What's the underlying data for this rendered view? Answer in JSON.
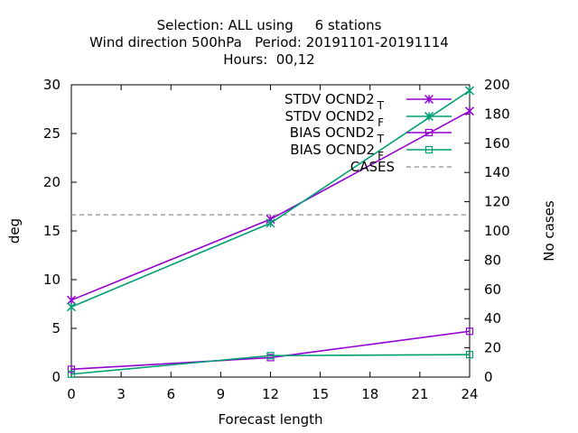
{
  "chart_data": {
    "type": "line",
    "title_lines": [
      "Selection: ALL using     6 stations",
      "Wind direction 500hPa   Period: 20191101-20191114",
      "Hours:  00,12"
    ],
    "xlabel": "Forecast length",
    "ylabel": "deg",
    "y2label": "No cases",
    "xlim": [
      0,
      24
    ],
    "ylim": [
      0,
      30
    ],
    "y2lim": [
      0,
      200
    ],
    "xticks": [
      0,
      3,
      6,
      9,
      12,
      15,
      18,
      21,
      24
    ],
    "yticks": [
      0,
      5,
      10,
      15,
      20,
      25,
      30
    ],
    "y2ticks": [
      0,
      20,
      40,
      60,
      80,
      100,
      120,
      140,
      160,
      180,
      200
    ],
    "grid": false,
    "legend_position": "top-right",
    "series": [
      {
        "name": "STDV OCND2",
        "sub": "T",
        "color": "#9400d3",
        "marker": "x-star",
        "x": [
          0,
          12,
          24
        ],
        "y": [
          7.9,
          16.2,
          27.3
        ]
      },
      {
        "name": "STDV OCND2",
        "sub": "F",
        "color": "#009e73",
        "marker": "x-star",
        "x": [
          0,
          12,
          24
        ],
        "y": [
          7.2,
          15.8,
          29.4
        ]
      },
      {
        "name": "BIAS OCND2",
        "sub": "T",
        "color": "#9400d3",
        "marker": "square",
        "x": [
          0,
          12,
          24
        ],
        "y": [
          0.8,
          2.0,
          4.7
        ]
      },
      {
        "name": "BIAS OCND2",
        "sub": "F",
        "color": "#009e73",
        "marker": "square",
        "x": [
          0,
          12,
          24
        ],
        "y": [
          0.3,
          2.2,
          2.3
        ]
      }
    ],
    "cases": {
      "name": "CASES",
      "color": "#a0a0a0",
      "value": 111,
      "axis": "y2"
    }
  }
}
